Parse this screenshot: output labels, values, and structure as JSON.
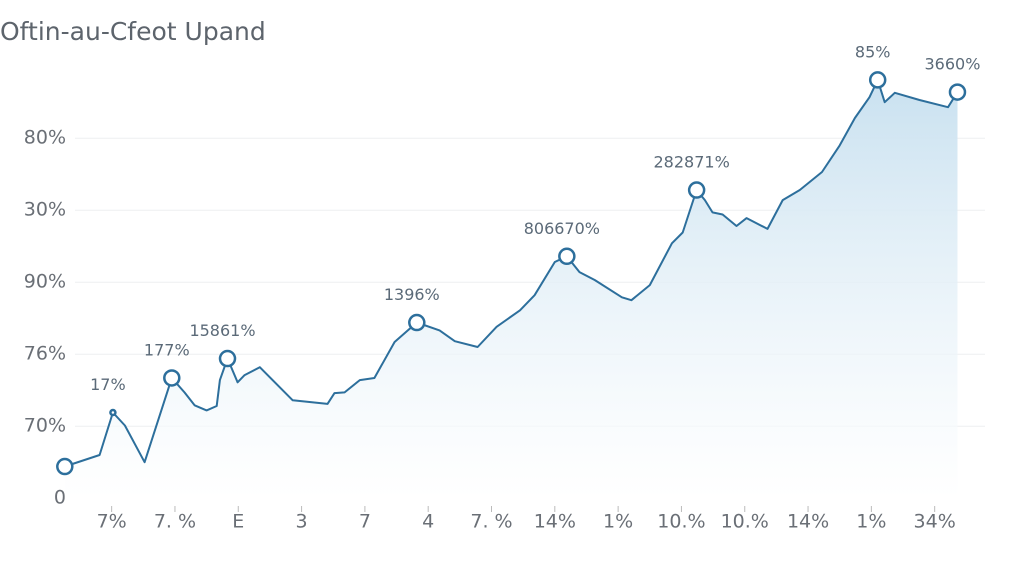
{
  "chart_data": {
    "type": "area",
    "title": "Oftin-au-Cfeot Upand",
    "series": [
      {
        "color": "#2d6f9c",
        "x": [
          -0.74,
          -0.19,
          0.02,
          0.21,
          0.52,
          0.95,
          1.15,
          1.31,
          1.5,
          1.66,
          1.71,
          1.83,
          1.99,
          2.1,
          2.34,
          2.86,
          3.41,
          3.52,
          3.68,
          3.92,
          4.15,
          4.47,
          4.82,
          5.18,
          5.42,
          5.78,
          6.08,
          6.45,
          6.68,
          7.0,
          7.19,
          7.39,
          7.63,
          8.06,
          8.21,
          8.5,
          8.85,
          9.02,
          9.24,
          9.37,
          9.49,
          9.65,
          9.87,
          10.03,
          10.36,
          10.6,
          10.87,
          11.22,
          11.5,
          11.74,
          11.97,
          12.1,
          12.21,
          12.37,
          12.76,
          13.21,
          13.36
        ],
        "values": [
          0.44,
          0.6,
          1.19,
          1.01,
          0.5,
          1.67,
          1.47,
          1.29,
          1.22,
          1.28,
          1.64,
          1.94,
          1.61,
          1.71,
          1.82,
          1.36,
          1.31,
          1.46,
          1.47,
          1.64,
          1.67,
          2.17,
          2.44,
          2.33,
          2.18,
          2.1,
          2.38,
          2.61,
          2.82,
          3.28,
          3.36,
          3.14,
          3.03,
          2.79,
          2.75,
          2.96,
          3.54,
          3.69,
          4.28,
          4.14,
          3.97,
          3.94,
          3.78,
          3.89,
          3.74,
          4.14,
          4.28,
          4.53,
          4.9,
          5.28,
          5.57,
          5.81,
          5.5,
          5.63,
          5.53,
          5.43,
          5.64
        ]
      }
    ],
    "annotations": [
      {
        "text": "17%",
        "x": 0.02,
        "y": 1.19
      },
      {
        "text": "177%",
        "x": 0.95,
        "y": 1.67
      },
      {
        "text": "15861%",
        "x": 1.83,
        "y": 1.94
      },
      {
        "text": "1396%",
        "x": 4.82,
        "y": 2.44
      },
      {
        "text": "806670%",
        "x": 7.19,
        "y": 3.36
      },
      {
        "text": "282871%",
        "x": 9.24,
        "y": 4.28
      },
      {
        "text": "85%",
        "x": 12.1,
        "y": 5.81
      },
      {
        "text": "3660%",
        "x": 13.36,
        "y": 5.64
      }
    ],
    "xlim": [
      -0.8,
      13.4
    ],
    "xticks": [
      {
        "value": 0,
        "label": "7%"
      },
      {
        "value": 1,
        "label": "7. %"
      },
      {
        "value": 2,
        "label": "E"
      },
      3,
      {
        "value": 4,
        "label": "7"
      },
      {
        "value": 5,
        "label": "4"
      },
      {
        "value": 6,
        "label": "7. %"
      },
      {
        "value": 7,
        "label": "14%"
      },
      {
        "value": 8,
        "label": "1%"
      },
      {
        "value": 9,
        "label": "10.%"
      },
      {
        "value": 10,
        "label": "10.%"
      },
      {
        "value": 11,
        "label": "14%"
      },
      {
        "value": 12,
        "label": "1%"
      },
      {
        "value": 13,
        "label": "34%"
      }
    ],
    "ylim": [
      -0.4,
      6.6
    ],
    "yticks": [
      0,
      {
        "value": 1,
        "label": "70%"
      },
      {
        "value": 2,
        "label": "76%"
      },
      {
        "value": 3,
        "label": "90%"
      },
      {
        "value": 4,
        "label": "30%"
      },
      {
        "value": 5,
        "label": "80%"
      }
    ],
    "grid": true
  }
}
